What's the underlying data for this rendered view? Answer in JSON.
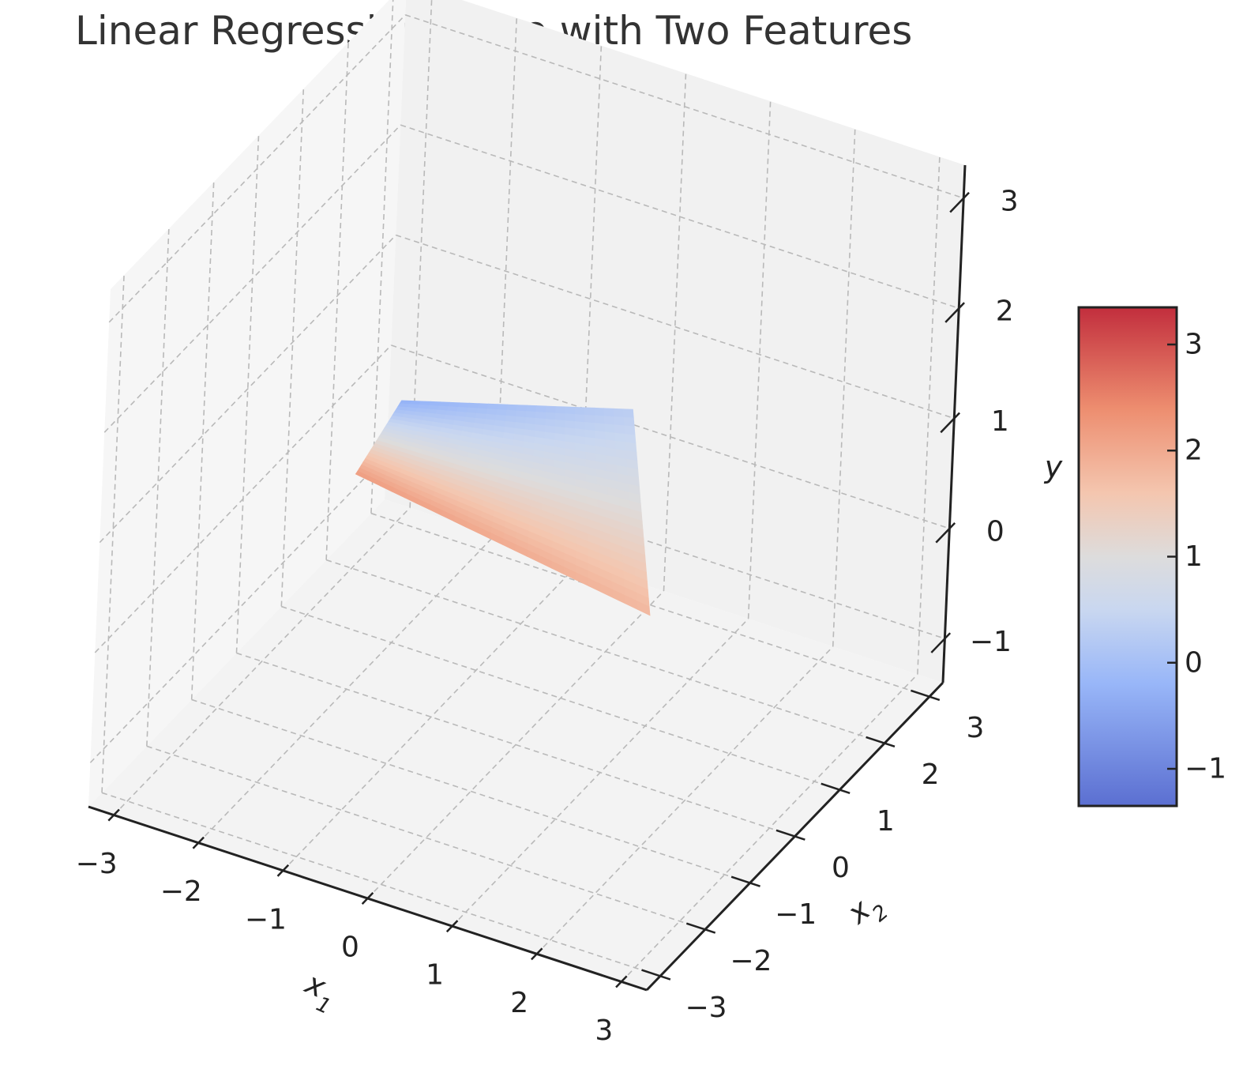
{
  "chart_data": {
    "type": "surface3d",
    "title": "Linear Regression Plane with Two Features",
    "xlabel": "x1",
    "ylabel": "x2",
    "zlabel": "y",
    "xlabel_base": "x",
    "xlabel_sub": "1",
    "ylabel_base": "x",
    "ylabel_sub": "2",
    "x_ticks": [
      -3,
      -2,
      -1,
      0,
      1,
      2,
      3
    ],
    "x_tick_labels": [
      "−3",
      "−2",
      "−1",
      "0",
      "1",
      "2",
      "3"
    ],
    "y_ticks": [
      -3,
      -2,
      -1,
      0,
      1,
      2,
      3
    ],
    "y_tick_labels": [
      "−3",
      "−2",
      "−1",
      "0",
      "1",
      "2",
      "3"
    ],
    "z_ticks": [
      -1,
      0,
      1,
      2,
      3
    ],
    "z_tick_labels": [
      "−1",
      "0",
      "1",
      "2",
      "3"
    ],
    "xlim": [
      -3.3,
      3.3
    ],
    "ylim": [
      -3.3,
      3.3
    ],
    "zlim": [
      -1.4,
      3.3
    ],
    "grid": true,
    "surface_corners": [
      {
        "x1": -3.0,
        "x2": 3.0,
        "y": -0.3
      },
      {
        "x1": -0.3,
        "x2": 3.0,
        "y": 0.3
      },
      {
        "x1": -0.5,
        "x2": -3.0,
        "y": 2.2
      },
      {
        "x1": 3.0,
        "x2": -3.0,
        "y": 1.8
      }
    ],
    "colormap": {
      "name": "coolwarm",
      "range": [
        -1.35,
        3.35
      ],
      "stops": [
        {
          "value": -1.35,
          "color": "#5b6fd1"
        },
        {
          "value": -0.2,
          "color": "#98b6f8"
        },
        {
          "value": 0.5,
          "color": "#c9d7f0"
        },
        {
          "value": 1.0,
          "color": "#dddcdc"
        },
        {
          "value": 1.6,
          "color": "#f4c6af"
        },
        {
          "value": 2.4,
          "color": "#ed8d6f"
        },
        {
          "value": 3.35,
          "color": "#c22e3d"
        }
      ]
    },
    "colorbar_ticks": [
      -1,
      0,
      1,
      2,
      3
    ],
    "colorbar_tick_labels": [
      "−1",
      "0",
      "1",
      "2",
      "3"
    ]
  }
}
